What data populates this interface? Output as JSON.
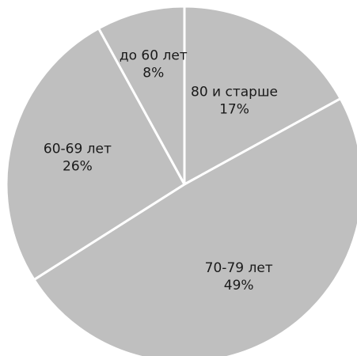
{
  "chart_data": {
    "type": "pie",
    "title": "",
    "legend": "none",
    "slice_color": "#bfbfbf",
    "separator_color": "#ffffff",
    "slices": [
      {
        "label": "80 и старше",
        "value": 17,
        "value_label": "17%"
      },
      {
        "label": "70-79 лет",
        "value": 49,
        "value_label": "49%"
      },
      {
        "label": "60-69 лет",
        "value": 26,
        "value_label": "26%"
      },
      {
        "label": "до 60 лет",
        "value": 8,
        "value_label": "8%"
      }
    ]
  }
}
